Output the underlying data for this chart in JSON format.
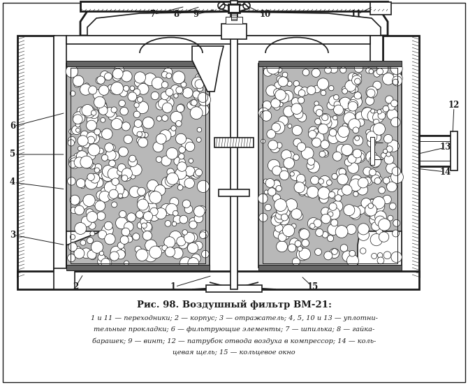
{
  "title": "Рис. 98. Воздушный фильтр ВМ-21:",
  "caption_line1": "1 и 11 — переходники; 2 — корпус; 3 — отражатель; 4, 5, 10 и 13 — уплотни-",
  "caption_line2": "тельные прокладки; 6 — фильтрующие элементы; 7 — шпилька; 8 — гайка-",
  "caption_line3": "барашек; 9 — винт; 12 — патрубок отвода воздуха в компрессор; 14 — коль-",
  "caption_line4": "цевая щель; 15 — кольцевое окно",
  "bg_color": "#ffffff",
  "line_color": "#1a1a1a",
  "fig_width": 6.7,
  "fig_height": 5.51,
  "dpi": 100
}
